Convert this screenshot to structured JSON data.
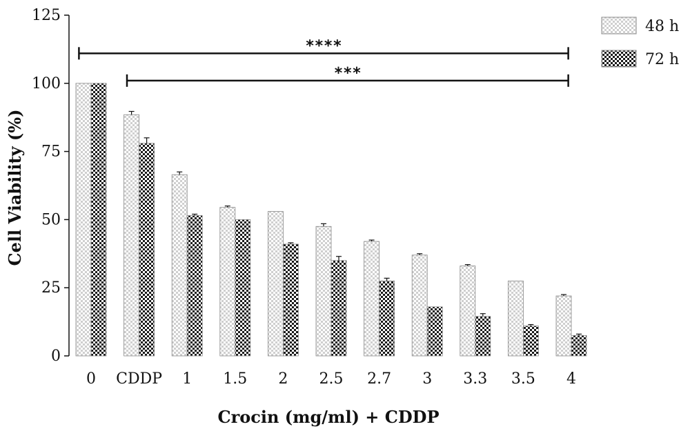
{
  "chart_data": {
    "type": "bar",
    "xlabel": "Crocin (mg/ml) + CDDP",
    "ylabel": "Cell Viability (%)",
    "ylim": [
      0,
      125
    ],
    "yticks": [
      0,
      25,
      50,
      75,
      100,
      125
    ],
    "categories": [
      "0",
      "CDDP",
      "1",
      "1.5",
      "2",
      "2.5",
      "2.7",
      "3",
      "3.3",
      "3.5",
      "4"
    ],
    "series": [
      {
        "name": "48 h",
        "pattern": "light-checker",
        "color": "#d9d9d9",
        "values": [
          100,
          88.5,
          66.5,
          54.5,
          53,
          47.5,
          42,
          37,
          33,
          27.5,
          22
        ],
        "errors": [
          0,
          1.2,
          1.0,
          0.5,
          0,
          1.0,
          0.5,
          0.5,
          0.5,
          0,
          0.5
        ]
      },
      {
        "name": "72 h",
        "pattern": "dark-checker",
        "color": "#222222",
        "values": [
          100,
          78,
          51.5,
          50,
          41,
          35,
          27.5,
          18,
          14.5,
          11,
          7.5
        ],
        "errors": [
          0,
          2.0,
          0.5,
          0,
          0.5,
          1.5,
          1.0,
          0,
          1.0,
          0.5,
          0.5
        ]
      }
    ],
    "significance": [
      {
        "label": "****",
        "from": "0",
        "to": "4",
        "y": 111
      },
      {
        "label": "***",
        "from": "CDDP",
        "to": "4",
        "y": 101
      }
    ],
    "legend_position": "top-right",
    "grid": false
  }
}
